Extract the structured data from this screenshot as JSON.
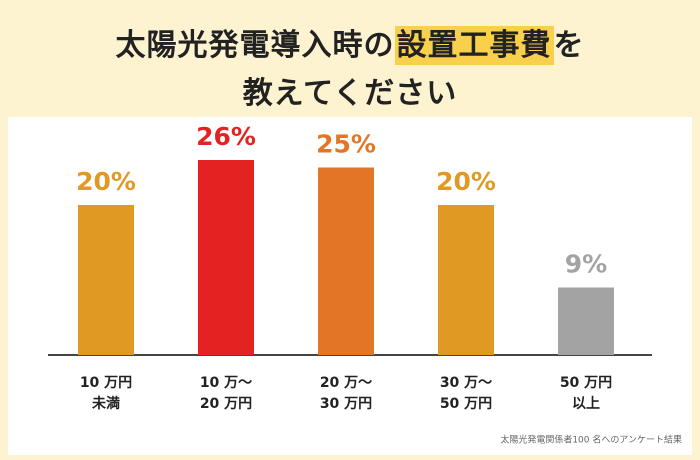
{
  "chart_data": {
    "type": "bar",
    "title_line1": [
      "太陽光発電導入時の",
      "設置工事費",
      "を"
    ],
    "title_line2": "教えてください",
    "categories": [
      [
        "10 万円",
        "未満"
      ],
      [
        "10 万〜",
        "20 万円"
      ],
      [
        "20 万〜",
        "30 万円"
      ],
      [
        "30 万〜",
        "50 万円"
      ],
      [
        "50 万円",
        "以上"
      ]
    ],
    "values": [
      20,
      26,
      25,
      20,
      9
    ],
    "value_labels": [
      "20%",
      "26%",
      "25%",
      "20%",
      "9%"
    ],
    "colors": [
      "#e09a23",
      "#e52222",
      "#e27624",
      "#e09a23",
      "#a3a3a3"
    ],
    "note": "太陽光発電関係者100 名へのアンケート結果"
  }
}
